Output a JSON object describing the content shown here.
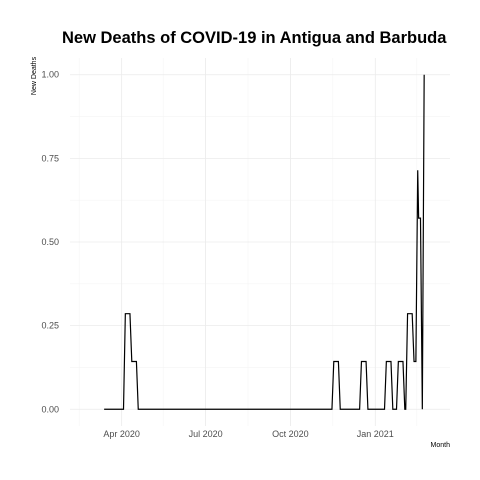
{
  "chart_data": {
    "type": "line",
    "title": "New Deaths of COVID-19 in Antigua and Barbuda",
    "xlabel": "Month",
    "ylabel": "New Deaths",
    "x_ticks": [
      {
        "label": "Apr 2020",
        "date": "2020-04-01"
      },
      {
        "label": "Jul 2020",
        "date": "2020-07-01"
      },
      {
        "label": "Oct 2020",
        "date": "2020-10-01"
      },
      {
        "label": "Jan 2021",
        "date": "2021-01-01"
      }
    ],
    "x_minor_dates": [
      "2020-02-15",
      "2020-05-16",
      "2020-08-16",
      "2020-11-16",
      "2021-02-15"
    ],
    "y_ticks": [
      0,
      0.25,
      0.5,
      0.75,
      1
    ],
    "y_tick_labels": [
      "0.00",
      "0.25",
      "0.50",
      "0.75",
      "1.00"
    ],
    "xlim": [
      "2020-02-05",
      "2021-03-23"
    ],
    "ylim": [
      -0.05,
      1.05
    ],
    "grid": true,
    "legend": "none",
    "series_color": "#000000",
    "points": [
      {
        "x": "2020-03-13",
        "y": 0
      },
      {
        "x": "2020-03-20",
        "y": 0
      },
      {
        "x": "2020-03-27",
        "y": 0
      },
      {
        "x": "2020-04-03",
        "y": 0
      },
      {
        "x": "2020-04-05",
        "y": 0.2857
      },
      {
        "x": "2020-04-10",
        "y": 0.2857
      },
      {
        "x": "2020-04-12",
        "y": 0.1429
      },
      {
        "x": "2020-04-17",
        "y": 0.1429
      },
      {
        "x": "2020-04-19",
        "y": 0
      },
      {
        "x": "2020-06-01",
        "y": 0
      },
      {
        "x": "2020-08-01",
        "y": 0
      },
      {
        "x": "2020-10-01",
        "y": 0
      },
      {
        "x": "2020-11-15",
        "y": 0
      },
      {
        "x": "2020-11-17",
        "y": 0.1429
      },
      {
        "x": "2020-11-22",
        "y": 0.1429
      },
      {
        "x": "2020-11-24",
        "y": 0
      },
      {
        "x": "2020-12-15",
        "y": 0
      },
      {
        "x": "2020-12-17",
        "y": 0.1429
      },
      {
        "x": "2020-12-22",
        "y": 0.1429
      },
      {
        "x": "2020-12-24",
        "y": 0
      },
      {
        "x": "2021-01-02",
        "y": 0
      },
      {
        "x": "2021-01-11",
        "y": 0
      },
      {
        "x": "2021-01-13",
        "y": 0.1429
      },
      {
        "x": "2021-01-18",
        "y": 0.1429
      },
      {
        "x": "2021-01-20",
        "y": 0
      },
      {
        "x": "2021-01-24",
        "y": 0
      },
      {
        "x": "2021-01-26",
        "y": 0.1429
      },
      {
        "x": "2021-01-31",
        "y": 0.1429
      },
      {
        "x": "2021-02-02",
        "y": 0
      },
      {
        "x": "2021-02-03",
        "y": 0
      },
      {
        "x": "2021-02-05",
        "y": 0.2857
      },
      {
        "x": "2021-02-10",
        "y": 0.2857
      },
      {
        "x": "2021-02-12",
        "y": 0.1429
      },
      {
        "x": "2021-02-14",
        "y": 0.1429
      },
      {
        "x": "2021-02-16",
        "y": 0.7143
      },
      {
        "x": "2021-02-17",
        "y": 0.5714
      },
      {
        "x": "2021-02-19",
        "y": 0.5714
      },
      {
        "x": "2021-02-21",
        "y": 0
      },
      {
        "x": "2021-02-23",
        "y": 1
      }
    ]
  }
}
